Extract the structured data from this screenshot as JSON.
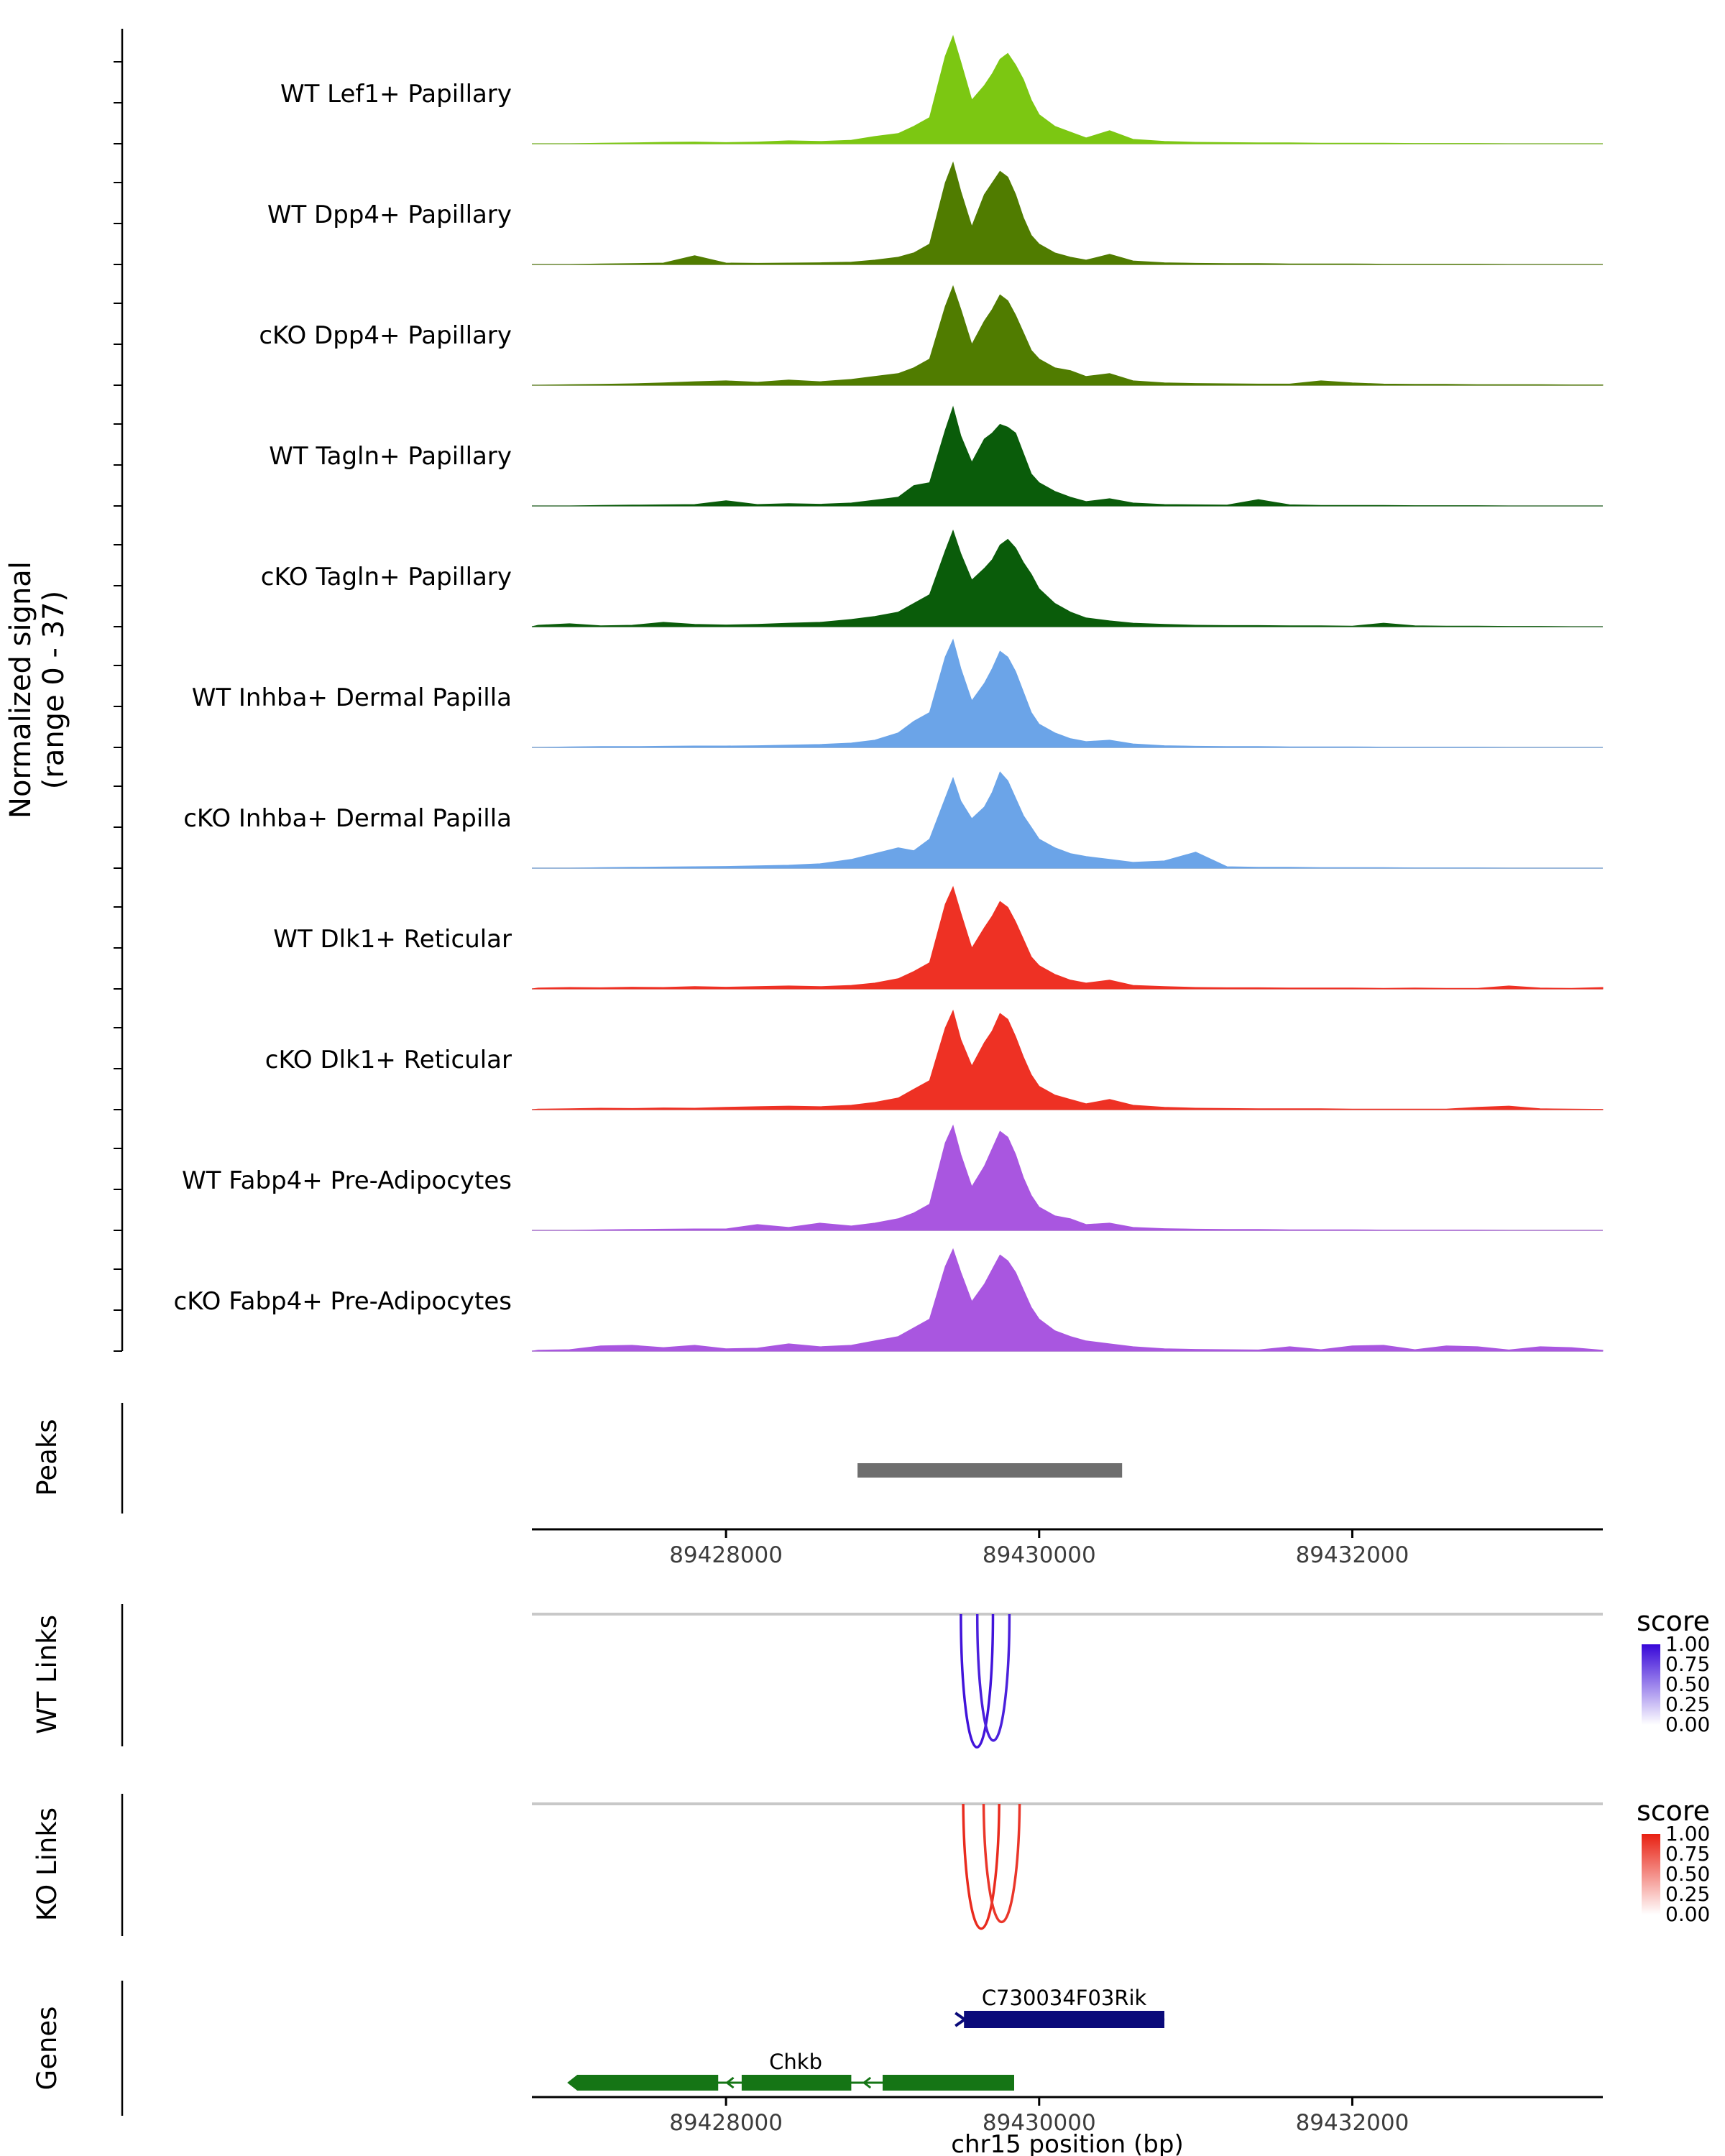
{
  "figure": {
    "background": "#FFFFFF",
    "y_axis_label_line1": "Normalized signal",
    "y_axis_label_line2": "(range 0 - 37)",
    "sections": {
      "peaks": "Peaks",
      "wt_links": "WT Links",
      "ko_links": "KO Links",
      "genes": "Genes"
    },
    "x_axis": {
      "title": "chr15 position (bp)",
      "tick_positions_bp": [
        89428000,
        89430000,
        89432000
      ],
      "tick_labels": [
        "89428000",
        "89430000",
        "89432000"
      ],
      "xlim_bp": [
        89426760,
        89433600
      ]
    },
    "legends": {
      "wt": {
        "title": "score",
        "tick_labels": [
          "1.00",
          "0.75",
          "0.50",
          "0.25",
          "0.00"
        ],
        "color_high": "#3707D8",
        "color_low": "#FFFFFF"
      },
      "ko": {
        "title": "score",
        "tick_labels": [
          "1.00",
          "0.75",
          "0.50",
          "0.25",
          "0.00"
        ],
        "color_high": "#E82012",
        "color_low": "#FFFFFF"
      }
    }
  },
  "chart_data": {
    "type": "area",
    "title": "",
    "xlabel": "chr15 position (bp)",
    "ylabel": "Normalized signal (range 0 - 37)",
    "ylim": [
      0,
      37
    ],
    "x_bp": [
      89426800,
      89427000,
      89427200,
      89427400,
      89427600,
      89427800,
      89428000,
      89428200,
      89428400,
      89428600,
      89428800,
      89428950,
      89429100,
      89429200,
      89429300,
      89429400,
      89429450,
      89429500,
      89429570,
      89429650,
      89429700,
      89429750,
      89429800,
      89429850,
      89429900,
      89429950,
      89430000,
      89430100,
      89430200,
      89430300,
      89430450,
      89430600,
      89430800,
      89431000,
      89431200,
      89431400,
      89431600,
      89431800,
      89432000,
      89432200,
      89432400,
      89432600,
      89432800,
      89433000,
      89433200,
      89433400,
      89433600
    ],
    "tracks": [
      {
        "label": "WT Lef1+ Papillary",
        "color": "#7CC712",
        "values": [
          0,
          0,
          0.2,
          0.3,
          0.5,
          0.6,
          0.4,
          0.6,
          1,
          0.8,
          1.2,
          2.5,
          3.5,
          6,
          9,
          30,
          37,
          28,
          15,
          20,
          24,
          29,
          31,
          27,
          22,
          15,
          10,
          6,
          4,
          2,
          4.5,
          1.5,
          0.8,
          0.5,
          0.4,
          0.3,
          0.3,
          0.2,
          0.2,
          0.2,
          0.1,
          0.1,
          0.1,
          0,
          0,
          0,
          0
        ]
      },
      {
        "label": "WT Dpp4+ Papillary",
        "color": "#507C00",
        "values": [
          0,
          0,
          0.2,
          0.3,
          0.5,
          3,
          0.5,
          0.4,
          0.5,
          0.6,
          0.8,
          1.5,
          2.5,
          4,
          7,
          28,
          35,
          25,
          13,
          24,
          28,
          32,
          30,
          24,
          16,
          10,
          7,
          4,
          2.5,
          1.5,
          3.5,
          1.2,
          0.6,
          0.4,
          0.3,
          0.3,
          0.2,
          0.2,
          0.2,
          0.1,
          0.1,
          0.1,
          0.1,
          0,
          0,
          0,
          0
        ]
      },
      {
        "label": "cKO Dpp4+ Papillary",
        "color": "#507C00",
        "values": [
          0,
          0.2,
          0.3,
          0.5,
          0.8,
          1.2,
          1.5,
          1,
          1.8,
          1.2,
          2,
          3,
          4,
          6,
          9,
          27,
          34,
          26,
          14,
          22,
          26,
          31,
          29,
          24,
          18,
          12,
          9,
          6,
          5,
          3,
          4,
          1.5,
          0.8,
          0.6,
          0.5,
          0.4,
          0.4,
          1.5,
          0.8,
          0.4,
          0.3,
          0.3,
          0.2,
          0.2,
          0.2,
          0.1,
          0.1
        ]
      },
      {
        "label": "WT Tagln+ Papillary",
        "color": "#0A5C0A",
        "values": [
          0,
          0,
          0.2,
          0.3,
          0.4,
          0.5,
          1.8,
          0.5,
          0.8,
          0.6,
          1,
          2,
          3,
          7,
          8,
          26,
          34,
          24,
          15,
          23,
          25,
          28,
          27,
          25,
          18,
          11,
          8,
          5,
          3,
          1.5,
          2.5,
          1,
          0.5,
          0.4,
          0.3,
          2.2,
          0.4,
          0.2,
          0.2,
          0.2,
          0.1,
          0.1,
          0.1,
          0,
          0,
          0,
          0
        ]
      },
      {
        "label": "cKO Tagln+ Papillary",
        "color": "#0A5C0A",
        "values": [
          0.5,
          1,
          0.3,
          0.5,
          1.5,
          0.8,
          0.6,
          0.8,
          1.2,
          1.5,
          2.5,
          3.5,
          5,
          8,
          11,
          26,
          33,
          25,
          16,
          20,
          23,
          28,
          30,
          27,
          22,
          18,
          13,
          8,
          5,
          3,
          2,
          1.2,
          0.8,
          0.5,
          0.4,
          0.4,
          0.3,
          0.3,
          0.2,
          1.2,
          0.3,
          0.2,
          0.2,
          0.1,
          0.1,
          0,
          0
        ]
      },
      {
        "label": "WT Inhba+ Dermal Papilla",
        "color": "#6BA4E8",
        "values": [
          0,
          0.2,
          0.3,
          0.3,
          0.4,
          0.5,
          0.5,
          0.6,
          0.8,
          1,
          1.5,
          2.5,
          5,
          9,
          12,
          31,
          37,
          27,
          16,
          22,
          27,
          33,
          31,
          26,
          19,
          12,
          8,
          5,
          3,
          2,
          2.5,
          1.2,
          0.6,
          0.4,
          0.3,
          0.3,
          0.2,
          0.2,
          0.2,
          0.1,
          0.1,
          0.1,
          0.1,
          0,
          0,
          0,
          0
        ]
      },
      {
        "label": "cKO Inhba+ Dermal Papilla",
        "color": "#6BA4E8",
        "values": [
          0,
          0,
          0.2,
          0.3,
          0.4,
          0.5,
          0.6,
          0.8,
          1,
          1.5,
          3,
          5,
          7,
          6,
          10,
          24,
          31,
          23,
          17,
          21,
          26,
          33,
          30,
          24,
          18,
          14,
          10,
          7,
          5,
          4,
          3,
          2,
          2.5,
          5.5,
          0.5,
          0.3,
          0.3,
          0.2,
          0.2,
          0.2,
          0.1,
          0.1,
          0.1,
          0,
          0,
          0,
          0
        ]
      },
      {
        "label": "WT Dlk1+ Reticular",
        "color": "#EE3124",
        "values": [
          0.3,
          0.5,
          0.4,
          0.6,
          0.5,
          0.8,
          0.6,
          0.8,
          1,
          0.8,
          1.2,
          2,
          3.5,
          6,
          9,
          29,
          35,
          26,
          14,
          21,
          25,
          30,
          28,
          23,
          17,
          11,
          8,
          5,
          3,
          2,
          3,
          1.2,
          0.8,
          0.5,
          0.4,
          0.4,
          0.3,
          0.3,
          0.3,
          0.2,
          0.3,
          0.2,
          0.2,
          1,
          0.3,
          0.2,
          0.5
        ]
      },
      {
        "label": "cKO Dlk1+ Reticular",
        "color": "#EE3124",
        "values": [
          0.2,
          0.3,
          0.5,
          0.4,
          0.6,
          0.5,
          0.8,
          1,
          1.2,
          1,
          1.5,
          2.5,
          4,
          7,
          10,
          28,
          34,
          24,
          15,
          23,
          27,
          33,
          31,
          25,
          18,
          12,
          8,
          5,
          3.5,
          2,
          3.5,
          1.5,
          0.8,
          0.5,
          0.4,
          0.3,
          0.3,
          0.3,
          0.2,
          0.2,
          0.2,
          0.2,
          0.8,
          1.2,
          0.3,
          0.2,
          0.1
        ]
      },
      {
        "label": "WT Fabp4+ Pre-Adipocytes",
        "color": "#A956E0",
        "values": [
          0,
          0,
          0.2,
          0.3,
          0.4,
          0.5,
          0.5,
          2,
          1,
          2.5,
          1.5,
          2.5,
          4,
          6,
          9,
          30,
          36,
          26,
          15,
          22,
          28,
          34,
          32,
          26,
          18,
          12,
          8,
          5,
          4,
          2,
          2.5,
          1,
          0.6,
          0.4,
          0.3,
          0.3,
          0.2,
          0.2,
          0.2,
          0.1,
          0.1,
          0.1,
          0.1,
          0,
          0,
          0,
          0
        ]
      },
      {
        "label": "cKO Fabp4+ Pre-Adipocytes",
        "color": "#A956E0",
        "values": [
          0.3,
          0.5,
          1.8,
          2,
          1.2,
          2,
          0.8,
          1,
          2.5,
          1.5,
          2,
          3.5,
          5,
          8,
          11,
          29,
          35,
          27,
          17,
          23,
          28,
          33,
          31,
          27,
          21,
          15,
          11,
          7,
          5,
          3.5,
          2.5,
          1.5,
          0.8,
          0.6,
          0.5,
          0.4,
          1.5,
          0.5,
          1.8,
          2,
          0.5,
          1.8,
          1.5,
          0.4,
          1.5,
          1.2,
          0.3
        ]
      }
    ],
    "peaks": [
      {
        "start_bp": 89428840,
        "end_bp": 89430530,
        "color": "#6E6E6E"
      }
    ],
    "wt_links": [
      {
        "start_bp": 89429500,
        "end_bp": 89429705,
        "score": 0.95
      },
      {
        "start_bp": 89429605,
        "end_bp": 89429810,
        "score": 0.9
      }
    ],
    "ko_links": [
      {
        "start_bp": 89429515,
        "end_bp": 89429745,
        "score": 0.95
      },
      {
        "start_bp": 89429645,
        "end_bp": 89429875,
        "score": 0.9
      }
    ],
    "genes": [
      {
        "name": "C730034F03Rik",
        "strand": "+",
        "start_bp": 89429520,
        "end_bp": 89430800,
        "color": "#0A0A7A",
        "exons": [
          [
            89429520,
            89430800
          ]
        ]
      },
      {
        "name": "Chkb",
        "strand": "-",
        "start_bp": 89427050,
        "end_bp": 89429840,
        "color": "#157515",
        "exons": [
          [
            89427050,
            89427950
          ],
          [
            89428100,
            89428800
          ],
          [
            89429000,
            89429840
          ]
        ]
      }
    ]
  }
}
